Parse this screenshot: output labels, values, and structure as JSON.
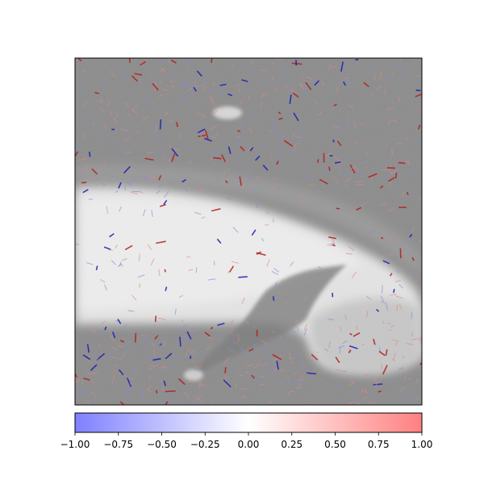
{
  "chart_data": {
    "type": "heatmap",
    "title": "",
    "xlabel": "",
    "ylabel": "",
    "image_axes": {
      "show_xticks": false,
      "show_yticks": false
    },
    "overlay": {
      "description_visible": false,
      "colormap": "bwr",
      "alpha": 0.5,
      "background": "grayscale photo"
    },
    "colorbar": {
      "orientation": "horizontal",
      "vmin": -1.0,
      "vmax": 1.0,
      "ticks": [
        -1.0,
        -0.75,
        -0.5,
        -0.25,
        0.0,
        0.25,
        0.5,
        0.75,
        1.0
      ],
      "tick_labels": [
        "−1.00",
        "−0.75",
        "−0.50",
        "−0.25",
        "0.00",
        "0.25",
        "0.50",
        "0.75",
        "1.00"
      ],
      "color_low": "#8080ff",
      "color_mid": "#ffffff",
      "color_high": "#ff8080"
    }
  }
}
